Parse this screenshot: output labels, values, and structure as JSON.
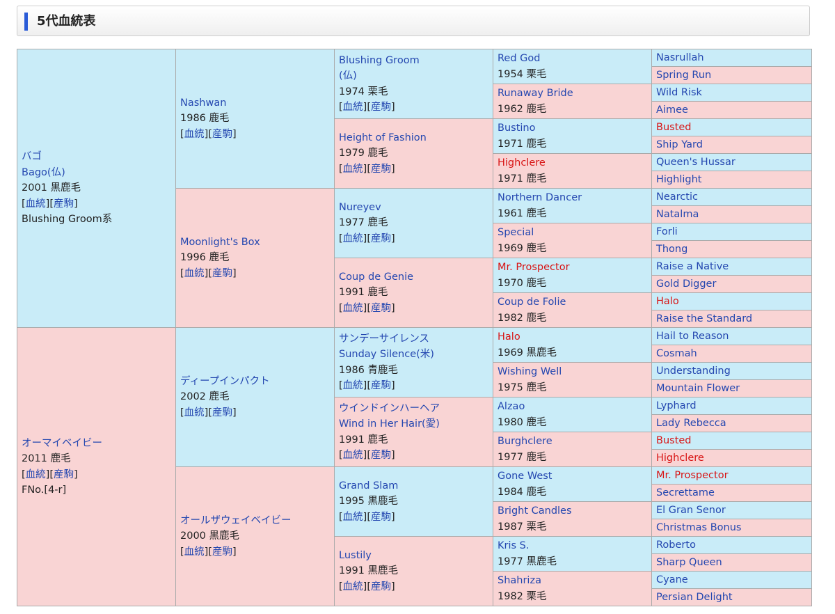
{
  "title": "5代血統表",
  "generations": [
    [
      {
        "names": [
          "バゴ",
          "Bago(仏)"
        ],
        "info": "2001 黒鹿毛",
        "refs": [
          "[",
          "血統",
          "][",
          "産駒",
          "]"
        ],
        "note": "Blushing Groom系"
      },
      {
        "names": [
          "オーマイベイビー"
        ],
        "info": "2011 鹿毛",
        "refs": [
          "[",
          "血統",
          "][",
          "産駒",
          "]"
        ],
        "note": "FNo.[4-r]"
      }
    ],
    [
      {
        "names": [
          "Nashwan"
        ],
        "info": "1986 鹿毛",
        "refs": [
          "[",
          "血統",
          "][",
          "産駒",
          "]"
        ]
      },
      {
        "names": [
          "Moonlight's Box"
        ],
        "info": "1996 鹿毛",
        "refs": [
          "[",
          "血統",
          "][",
          "産駒",
          "]"
        ]
      },
      {
        "names": [
          "ディープインパクト"
        ],
        "info": "2002 鹿毛",
        "refs": [
          "[",
          "血統",
          "][",
          "産駒",
          "]"
        ]
      },
      {
        "names": [
          "オールザウェイベイビー"
        ],
        "info": "2000 黒鹿毛",
        "refs": [
          "[",
          "血統",
          "][",
          "産駒",
          "]"
        ]
      }
    ],
    [
      {
        "names": [
          "Blushing Groom",
          "(仏)"
        ],
        "info": "1974 栗毛",
        "refs": [
          "[",
          "血統",
          "][",
          "産駒",
          "]"
        ]
      },
      {
        "names": [
          "Height of Fashion"
        ],
        "info": "1979 鹿毛",
        "refs": [
          "[",
          "血統",
          "][",
          "産駒",
          "]"
        ]
      },
      {
        "names": [
          "Nureyev"
        ],
        "info": "1977 鹿毛",
        "refs": [
          "[",
          "血統",
          "][",
          "産駒",
          "]"
        ]
      },
      {
        "names": [
          "Coup de Genie"
        ],
        "info": "1991 鹿毛",
        "refs": [
          "[",
          "血統",
          "][",
          "産駒",
          "]"
        ]
      },
      {
        "names": [
          "サンデーサイレンス",
          "Sunday Silence(米)"
        ],
        "info": "1986 青鹿毛",
        "refs": [
          "[",
          "血統",
          "][",
          "産駒",
          "]"
        ]
      },
      {
        "names": [
          "ウインドインハーヘア",
          "Wind in Her Hair(愛)"
        ],
        "info": "1991 鹿毛",
        "refs": [
          "[",
          "血統",
          "][",
          "産駒",
          "]"
        ]
      },
      {
        "names": [
          "Grand Slam"
        ],
        "info": "1995 黒鹿毛",
        "refs": [
          "[",
          "血統",
          "][",
          "産駒",
          "]"
        ]
      },
      {
        "names": [
          "Lustily"
        ],
        "info": "1991 黒鹿毛",
        "refs": [
          "[",
          "血統",
          "][",
          "産駒",
          "]"
        ]
      }
    ],
    [
      {
        "names": [
          "Red God"
        ],
        "info": "1954 栗毛"
      },
      {
        "names": [
          "Runaway Bride"
        ],
        "info": "1962 鹿毛"
      },
      {
        "names": [
          "Bustino"
        ],
        "info": "1971 鹿毛"
      },
      {
        "names": [
          "Highclere"
        ],
        "info": "1971 鹿毛",
        "red": true
      },
      {
        "names": [
          "Northern Dancer"
        ],
        "info": "1961 鹿毛"
      },
      {
        "names": [
          "Special"
        ],
        "info": "1969 鹿毛"
      },
      {
        "names": [
          "Mr. Prospector"
        ],
        "info": "1970 鹿毛",
        "red": true
      },
      {
        "names": [
          "Coup de Folie"
        ],
        "info": "1982 鹿毛"
      },
      {
        "names": [
          "Halo"
        ],
        "info": "1969 黒鹿毛",
        "red": true
      },
      {
        "names": [
          "Wishing Well"
        ],
        "info": "1975 鹿毛"
      },
      {
        "names": [
          "Alzao"
        ],
        "info": "1980 鹿毛"
      },
      {
        "names": [
          "Burghclere"
        ],
        "info": "1977 鹿毛"
      },
      {
        "names": [
          "Gone West"
        ],
        "info": "1984 鹿毛"
      },
      {
        "names": [
          "Bright Candles"
        ],
        "info": "1987 栗毛"
      },
      {
        "names": [
          "Kris S."
        ],
        "info": "1977 黒鹿毛"
      },
      {
        "names": [
          "Shahriza"
        ],
        "info": "1982 栗毛"
      }
    ],
    [
      {
        "names": [
          "Nasrullah"
        ]
      },
      {
        "names": [
          "Spring Run"
        ]
      },
      {
        "names": [
          "Wild Risk"
        ]
      },
      {
        "names": [
          "Aimee"
        ]
      },
      {
        "names": [
          "Busted"
        ],
        "red": true
      },
      {
        "names": [
          "Ship Yard"
        ]
      },
      {
        "names": [
          "Queen's Hussar"
        ]
      },
      {
        "names": [
          "Highlight"
        ]
      },
      {
        "names": [
          "Nearctic"
        ]
      },
      {
        "names": [
          "Natalma"
        ]
      },
      {
        "names": [
          "Forli"
        ]
      },
      {
        "names": [
          "Thong"
        ]
      },
      {
        "names": [
          "Raise a Native"
        ]
      },
      {
        "names": [
          "Gold Digger"
        ]
      },
      {
        "names": [
          "Halo"
        ],
        "red": true
      },
      {
        "names": [
          "Raise the Standard"
        ]
      },
      {
        "names": [
          "Hail to Reason"
        ]
      },
      {
        "names": [
          "Cosmah"
        ]
      },
      {
        "names": [
          "Understanding"
        ]
      },
      {
        "names": [
          "Mountain Flower"
        ]
      },
      {
        "names": [
          "Lyphard"
        ]
      },
      {
        "names": [
          "Lady Rebecca"
        ]
      },
      {
        "names": [
          "Busted"
        ],
        "red": true
      },
      {
        "names": [
          "Highclere"
        ],
        "red": true
      },
      {
        "names": [
          "Mr. Prospector"
        ],
        "red": true
      },
      {
        "names": [
          "Secrettame"
        ]
      },
      {
        "names": [
          "El Gran Senor"
        ]
      },
      {
        "names": [
          "Christmas Bonus"
        ]
      },
      {
        "names": [
          "Roberto"
        ]
      },
      {
        "names": [
          "Sharp Queen"
        ]
      },
      {
        "names": [
          "Cyane"
        ]
      },
      {
        "names": [
          "Persian Delight"
        ]
      }
    ]
  ]
}
